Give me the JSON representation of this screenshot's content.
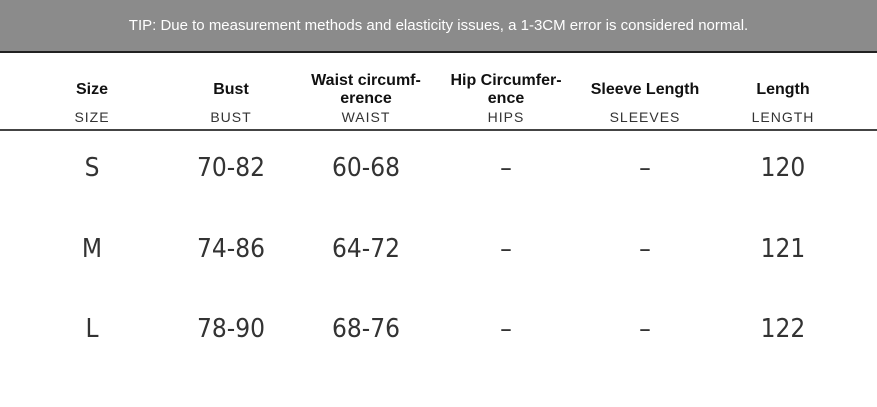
{
  "header": {
    "tip": "TIP: Due to measurement methods and elasticity issues, a 1-3CM error is considered normal."
  },
  "table": {
    "columns": [
      {
        "title": [
          "Size"
        ],
        "subtitle": "SIZE"
      },
      {
        "title": [
          "Bust"
        ],
        "subtitle": "BUST"
      },
      {
        "title": [
          "Waist circumf-",
          "erence"
        ],
        "subtitle": "WAIST"
      },
      {
        "title": [
          "Hip Circumfer-",
          "ence"
        ],
        "subtitle": "HIPS"
      },
      {
        "title": [
          "Sleeve Length"
        ],
        "subtitle": "SLEEVES"
      },
      {
        "title": [
          "Length"
        ],
        "subtitle": "LENGTH"
      }
    ],
    "rows": [
      [
        "S",
        "70-82",
        "60-68",
        "–",
        "–",
        "120"
      ],
      [
        "M",
        "74-86",
        "64-72",
        "–",
        "–",
        "121"
      ],
      [
        "L",
        "78-90",
        "68-76",
        "–",
        "–",
        "122"
      ]
    ]
  }
}
